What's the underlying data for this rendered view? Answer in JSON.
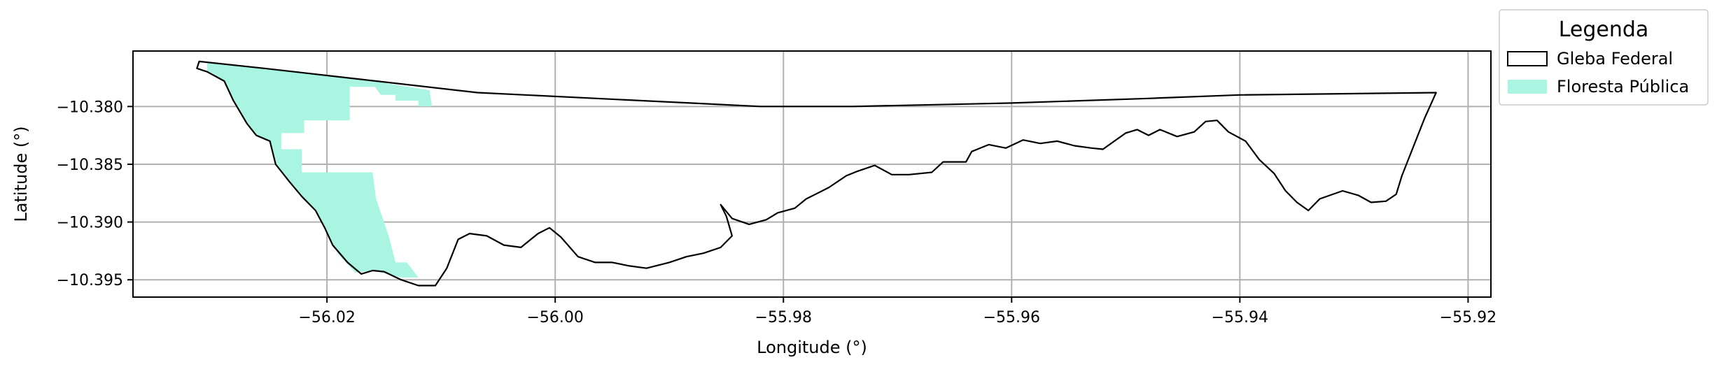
{
  "map": {
    "type": "choropleth-outline",
    "xlabel": "Longitude (°)",
    "ylabel": "Latitude (°)",
    "xlim": [
      -56.037,
      -55.918
    ],
    "ylim": [
      -10.3965,
      -10.3752
    ],
    "x_ticks": [
      {
        "value": -56.02,
        "label": "−56.02"
      },
      {
        "value": -56.0,
        "label": "−56.00"
      },
      {
        "value": -55.98,
        "label": "−55.98"
      },
      {
        "value": -55.96,
        "label": "−55.96"
      },
      {
        "value": -55.94,
        "label": "−55.94"
      },
      {
        "value": -55.92,
        "label": "−55.92"
      }
    ],
    "y_ticks": [
      {
        "value": -10.38,
        "label": "−10.380"
      },
      {
        "value": -10.385,
        "label": "−10.385"
      },
      {
        "value": -10.39,
        "label": "−10.390"
      },
      {
        "value": -10.395,
        "label": "−10.395"
      }
    ],
    "grid": true,
    "legend": {
      "title": "Legenda",
      "placement": "outside-top-right",
      "items": [
        {
          "name": "gleba-federal",
          "label": "Gleba Federal",
          "style": "outline",
          "color": "#000000"
        },
        {
          "name": "floresta-publica",
          "label": "Floresta Pública",
          "style": "fill",
          "color": "#aaf5e2"
        }
      ]
    },
    "colors": {
      "floresta_publica_fill": "#aaf5e2",
      "gleba_outline": "#000000",
      "grid": "#b0b0b0"
    },
    "layers": {
      "gleba_federal": [
        [
          -56.0312,
          -10.3761
        ],
        [
          -56.0255,
          -10.3767
        ],
        [
          -56.0068,
          -10.3788
        ],
        [
          -55.982,
          -10.38
        ],
        [
          -55.974,
          -10.38
        ],
        [
          -55.96,
          -10.3797
        ],
        [
          -55.948,
          -10.3793
        ],
        [
          -55.94,
          -10.379
        ],
        [
          -55.9228,
          -10.3788
        ],
        [
          -55.9238,
          -10.381
        ],
        [
          -55.9258,
          -10.386
        ],
        [
          -55.9263,
          -10.3876
        ],
        [
          -55.9272,
          -10.3882
        ],
        [
          -55.9285,
          -10.3883
        ],
        [
          -55.9296,
          -10.3877
        ],
        [
          -55.931,
          -10.3873
        ],
        [
          -55.933,
          -10.388
        ],
        [
          -55.934,
          -10.389
        ],
        [
          -55.935,
          -10.3883
        ],
        [
          -55.936,
          -10.3873
        ],
        [
          -55.937,
          -10.3858
        ],
        [
          -55.9383,
          -10.3846
        ],
        [
          -55.9395,
          -10.383
        ],
        [
          -55.941,
          -10.3822
        ],
        [
          -55.942,
          -10.3812
        ],
        [
          -55.943,
          -10.3813
        ],
        [
          -55.944,
          -10.3822
        ],
        [
          -55.9455,
          -10.3826
        ],
        [
          -55.947,
          -10.382
        ],
        [
          -55.948,
          -10.3825
        ],
        [
          -55.949,
          -10.382
        ],
        [
          -55.95,
          -10.3823
        ],
        [
          -55.951,
          -10.383
        ],
        [
          -55.952,
          -10.3837
        ],
        [
          -55.953,
          -10.3836
        ],
        [
          -55.9545,
          -10.3834
        ],
        [
          -55.956,
          -10.383
        ],
        [
          -55.9575,
          -10.3832
        ],
        [
          -55.959,
          -10.3829
        ],
        [
          -55.9605,
          -10.3836
        ],
        [
          -55.962,
          -10.3833
        ],
        [
          -55.9635,
          -10.3839
        ],
        [
          -55.964,
          -10.3848
        ],
        [
          -55.966,
          -10.3848
        ],
        [
          -55.967,
          -10.3857
        ],
        [
          -55.969,
          -10.3859
        ],
        [
          -55.9705,
          -10.3859
        ],
        [
          -55.972,
          -10.3851
        ],
        [
          -55.9735,
          -10.3856
        ],
        [
          -55.9745,
          -10.386
        ],
        [
          -55.976,
          -10.387
        ],
        [
          -55.977,
          -10.3875
        ],
        [
          -55.978,
          -10.388
        ],
        [
          -55.979,
          -10.3888
        ],
        [
          -55.9805,
          -10.3892
        ],
        [
          -55.9815,
          -10.3898
        ],
        [
          -55.983,
          -10.3902
        ],
        [
          -55.9845,
          -10.3897
        ],
        [
          -55.9855,
          -10.3885
        ],
        [
          -55.985,
          -10.3895
        ],
        [
          -55.9845,
          -10.3912
        ],
        [
          -55.9855,
          -10.3922
        ],
        [
          -55.987,
          -10.3927
        ],
        [
          -55.9885,
          -10.393
        ],
        [
          -55.99,
          -10.3935
        ],
        [
          -55.992,
          -10.394
        ],
        [
          -55.9935,
          -10.3938
        ],
        [
          -55.995,
          -10.3935
        ],
        [
          -55.9965,
          -10.3935
        ],
        [
          -55.998,
          -10.393
        ],
        [
          -55.9995,
          -10.3913
        ],
        [
          -56.0005,
          -10.3905
        ],
        [
          -56.0015,
          -10.391
        ],
        [
          -56.003,
          -10.3922
        ],
        [
          -56.0045,
          -10.392
        ],
        [
          -56.006,
          -10.3912
        ],
        [
          -56.0075,
          -10.391
        ],
        [
          -56.0085,
          -10.3915
        ],
        [
          -56.0095,
          -10.394
        ],
        [
          -56.0105,
          -10.3955
        ],
        [
          -56.012,
          -10.3955
        ],
        [
          -56.0135,
          -10.395
        ],
        [
          -56.015,
          -10.3943
        ],
        [
          -56.016,
          -10.3942
        ],
        [
          -56.017,
          -10.3945
        ],
        [
          -56.0182,
          -10.3935
        ],
        [
          -56.0195,
          -10.392
        ],
        [
          -56.0202,
          -10.3905
        ],
        [
          -56.021,
          -10.389
        ],
        [
          -56.0222,
          -10.3878
        ],
        [
          -56.0233,
          -10.3865
        ],
        [
          -56.0245,
          -10.385
        ],
        [
          -56.025,
          -10.383
        ],
        [
          -56.0262,
          -10.3825
        ],
        [
          -56.027,
          -10.3815
        ],
        [
          -56.0282,
          -10.3795
        ],
        [
          -56.029,
          -10.3778
        ],
        [
          -56.0305,
          -10.377
        ],
        [
          -56.0314,
          -10.3767
        ],
        [
          -56.0312,
          -10.3761
        ]
      ],
      "floresta_publica": [
        [
          -56.0305,
          -10.3762
        ],
        [
          -56.0255,
          -10.3767
        ],
        [
          -56.016,
          -10.3778
        ],
        [
          -56.011,
          -10.3786
        ],
        [
          -56.0108,
          -10.38
        ],
        [
          -56.012,
          -10.38
        ],
        [
          -56.012,
          -10.3795
        ],
        [
          -56.014,
          -10.3795
        ],
        [
          -56.014,
          -10.379
        ],
        [
          -56.0153,
          -10.379
        ],
        [
          -56.0158,
          -10.3783
        ],
        [
          -56.018,
          -10.3783
        ],
        [
          -56.018,
          -10.3812
        ],
        [
          -56.022,
          -10.3812
        ],
        [
          -56.022,
          -10.3823
        ],
        [
          -56.024,
          -10.3823
        ],
        [
          -56.024,
          -10.3837
        ],
        [
          -56.0222,
          -10.3837
        ],
        [
          -56.0222,
          -10.3857
        ],
        [
          -56.016,
          -10.3857
        ],
        [
          -56.0157,
          -10.388
        ],
        [
          -56.015,
          -10.39
        ],
        [
          -56.0145,
          -10.3915
        ],
        [
          -56.014,
          -10.3935
        ],
        [
          -56.013,
          -10.3935
        ],
        [
          -56.012,
          -10.3948
        ],
        [
          -56.0135,
          -10.3948
        ],
        [
          -56.016,
          -10.3942
        ],
        [
          -56.0175,
          -10.3944
        ],
        [
          -56.019,
          -10.3928
        ],
        [
          -56.0202,
          -10.3905
        ],
        [
          -56.021,
          -10.389
        ],
        [
          -56.0222,
          -10.3878
        ],
        [
          -56.0235,
          -10.3863
        ],
        [
          -56.0245,
          -10.385
        ],
        [
          -56.025,
          -10.383
        ],
        [
          -56.0262,
          -10.3825
        ],
        [
          -56.027,
          -10.3815
        ],
        [
          -56.0282,
          -10.3795
        ],
        [
          -56.029,
          -10.3778
        ],
        [
          -56.0305,
          -10.377
        ],
        [
          -56.0305,
          -10.3762
        ]
      ]
    }
  }
}
